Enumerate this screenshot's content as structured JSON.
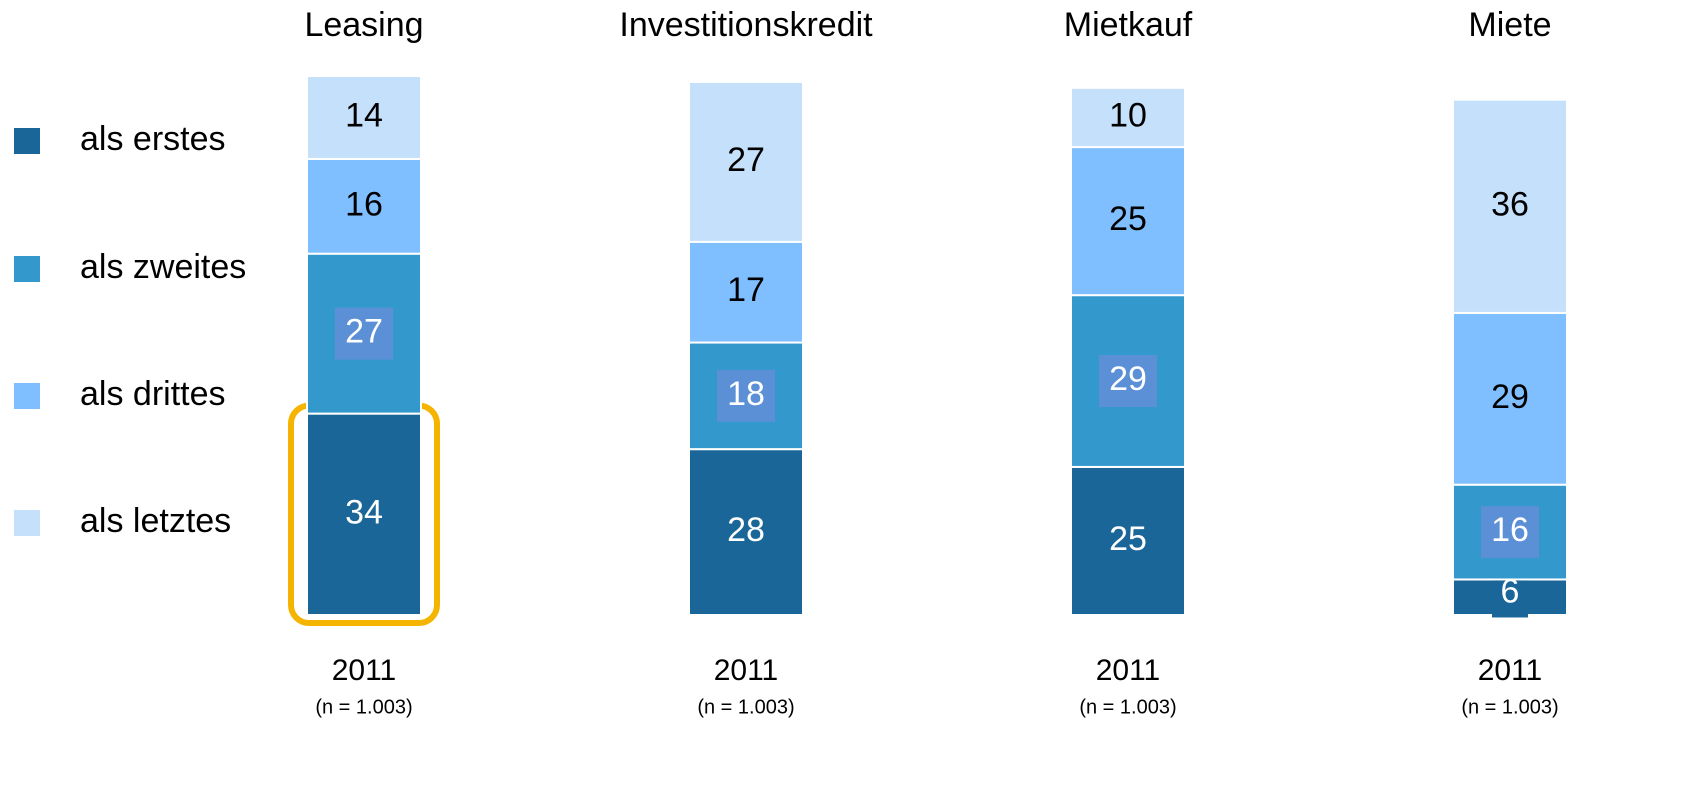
{
  "chart_data": {
    "type": "bar",
    "stacked": true,
    "categories": [
      "Leasing",
      "Investitionskredit",
      "Mietkauf",
      "Miete"
    ],
    "year_labels": [
      "2011",
      "2011",
      "2011",
      "2011"
    ],
    "sample_labels": [
      "(n = 1.003)",
      "(n = 1.003)",
      "(n = 1.003)",
      "(n = 1.003)"
    ],
    "legend": "left",
    "series": [
      {
        "name": "als erstes",
        "color": "#1b6699",
        "values": [
          34,
          28,
          25,
          6
        ]
      },
      {
        "name": "als zweites",
        "color": "#3399cc",
        "values": [
          27,
          18,
          29,
          16
        ]
      },
      {
        "name": "als drittes",
        "color": "#80bfff",
        "values": [
          16,
          17,
          25,
          29
        ]
      },
      {
        "name": "als letztes",
        "color": "#c5e0fb",
        "values": [
          14,
          27,
          10,
          36
        ]
      }
    ]
  }
}
